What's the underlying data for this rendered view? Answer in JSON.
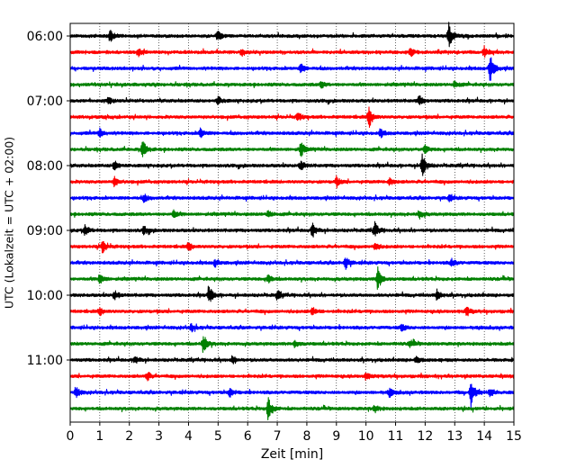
{
  "chart_data": {
    "type": "line",
    "title": "",
    "xlabel": "Zeit  [min]",
    "ylabel": "UTC (Lokalzeit = UTC + 02:00)",
    "xlim": [
      0,
      15
    ],
    "x_ticks": [
      0,
      1,
      2,
      3,
      4,
      5,
      6,
      7,
      8,
      9,
      10,
      11,
      12,
      13,
      14,
      15
    ],
    "x_tick_labels": [
      "0",
      "1",
      "2",
      "3",
      "4",
      "5",
      "6",
      "7",
      "8",
      "9",
      "10",
      "11",
      "12",
      "13",
      "14",
      "15"
    ],
    "y_tick_labels": [
      "06:00",
      "07:00",
      "08:00",
      "09:00",
      "10:00",
      "11:00"
    ],
    "grid": "vertical dotted",
    "trace_interval_min": 15,
    "start_time": "06:00",
    "colors": [
      "#000000",
      "#ff0000",
      "#0000ff",
      "#008000"
    ],
    "traces": [
      {
        "time": "06:00",
        "color": "#000000",
        "events": [
          [
            1.35,
            0.5
          ],
          [
            5.0,
            0.4
          ],
          [
            12.8,
            1.0
          ]
        ]
      },
      {
        "time": "06:15",
        "color": "#ff0000",
        "events": [
          [
            2.3,
            0.3
          ],
          [
            5.8,
            0.3
          ],
          [
            11.5,
            0.3
          ],
          [
            14.0,
            0.4
          ]
        ]
      },
      {
        "time": "06:30",
        "color": "#0000ff",
        "events": [
          [
            7.8,
            0.35
          ],
          [
            14.2,
            1.2
          ]
        ]
      },
      {
        "time": "06:45",
        "color": "#008000",
        "events": [
          [
            8.5,
            0.25
          ],
          [
            13.0,
            0.3
          ]
        ]
      },
      {
        "time": "07:00",
        "color": "#000000",
        "events": [
          [
            1.3,
            0.3
          ],
          [
            5.0,
            0.35
          ],
          [
            11.8,
            0.4
          ]
        ]
      },
      {
        "time": "07:15",
        "color": "#ff0000",
        "events": [
          [
            7.7,
            0.35
          ],
          [
            10.1,
            0.9
          ]
        ]
      },
      {
        "time": "07:30",
        "color": "#0000ff",
        "events": [
          [
            1.0,
            0.35
          ],
          [
            4.4,
            0.4
          ],
          [
            10.5,
            0.3
          ]
        ]
      },
      {
        "time": "07:45",
        "color": "#008000",
        "events": [
          [
            2.45,
            0.75
          ],
          [
            7.8,
            0.6
          ],
          [
            12.0,
            0.3
          ]
        ]
      },
      {
        "time": "08:00",
        "color": "#000000",
        "events": [
          [
            1.5,
            0.4
          ],
          [
            7.8,
            0.4
          ],
          [
            11.9,
            0.9
          ]
        ]
      },
      {
        "time": "08:15",
        "color": "#ff0000",
        "events": [
          [
            1.5,
            0.35
          ],
          [
            9.0,
            0.35
          ],
          [
            10.8,
            0.3
          ]
        ]
      },
      {
        "time": "08:30",
        "color": "#0000ff",
        "events": [
          [
            2.5,
            0.3
          ],
          [
            12.8,
            0.25
          ]
        ]
      },
      {
        "time": "08:45",
        "color": "#008000",
        "events": [
          [
            3.5,
            0.3
          ],
          [
            6.7,
            0.3
          ],
          [
            11.8,
            0.35
          ]
        ]
      },
      {
        "time": "09:00",
        "color": "#000000",
        "events": [
          [
            0.5,
            0.4
          ],
          [
            2.5,
            0.35
          ],
          [
            8.2,
            0.6
          ],
          [
            10.3,
            0.6
          ]
        ]
      },
      {
        "time": "09:15",
        "color": "#ff0000",
        "events": [
          [
            1.1,
            0.55
          ],
          [
            4.0,
            0.35
          ],
          [
            10.3,
            0.3
          ]
        ]
      },
      {
        "time": "09:30",
        "color": "#0000ff",
        "events": [
          [
            4.9,
            0.3
          ],
          [
            9.3,
            0.55
          ],
          [
            12.9,
            0.3
          ]
        ]
      },
      {
        "time": "09:45",
        "color": "#008000",
        "events": [
          [
            1.0,
            0.4
          ],
          [
            6.7,
            0.35
          ],
          [
            10.4,
            1.0
          ]
        ]
      },
      {
        "time": "10:00",
        "color": "#000000",
        "events": [
          [
            1.5,
            0.35
          ],
          [
            4.7,
            0.75
          ],
          [
            7.0,
            0.35
          ],
          [
            12.4,
            0.4
          ]
        ]
      },
      {
        "time": "10:15",
        "color": "#ff0000",
        "events": [
          [
            1.0,
            0.3
          ],
          [
            8.2,
            0.35
          ],
          [
            13.4,
            0.35
          ]
        ]
      },
      {
        "time": "10:30",
        "color": "#0000ff",
        "events": [
          [
            4.1,
            0.3
          ],
          [
            11.2,
            0.3
          ]
        ]
      },
      {
        "time": "10:45",
        "color": "#008000",
        "events": [
          [
            4.5,
            0.8
          ],
          [
            7.6,
            0.3
          ],
          [
            11.5,
            0.3
          ]
        ]
      },
      {
        "time": "11:00",
        "color": "#000000",
        "events": [
          [
            2.2,
            0.35
          ],
          [
            5.5,
            0.3
          ],
          [
            11.7,
            0.3
          ]
        ]
      },
      {
        "time": "11:15",
        "color": "#ff0000",
        "events": [
          [
            2.6,
            0.35
          ],
          [
            10.0,
            0.3
          ]
        ]
      },
      {
        "time": "11:30",
        "color": "#0000ff",
        "events": [
          [
            0.2,
            0.45
          ],
          [
            5.4,
            0.35
          ],
          [
            10.8,
            0.35
          ],
          [
            13.55,
            1.1
          ],
          [
            14.2,
            0.35
          ]
        ]
      },
      {
        "time": "11:45",
        "color": "#008000",
        "events": [
          [
            6.7,
            1.0
          ],
          [
            10.3,
            0.3
          ]
        ]
      }
    ]
  }
}
